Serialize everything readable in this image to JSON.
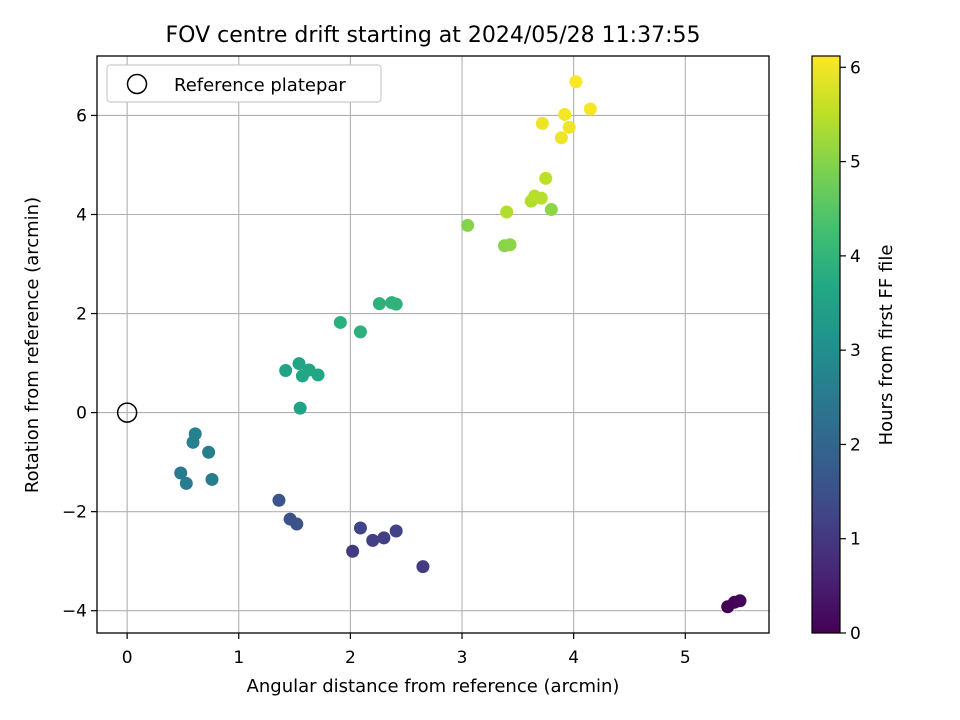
{
  "chart_data": {
    "type": "scatter",
    "title": "FOV centre drift starting at 2024/05/28 11:37:55",
    "xlabel": "Angular distance from reference (arcmin)",
    "ylabel": "Rotation from reference (arcmin)",
    "colorbar_label": "Hours from first FF file",
    "xlim": [
      -0.27,
      5.75
    ],
    "ylim": [
      -4.45,
      7.2
    ],
    "clim": [
      0,
      6.12
    ],
    "x_ticks": [
      0,
      1,
      2,
      3,
      4,
      5
    ],
    "y_ticks": [
      -4,
      -2,
      0,
      2,
      4,
      6
    ],
    "colorbar_ticks": [
      0,
      1,
      2,
      3,
      4,
      5,
      6
    ],
    "grid": true,
    "colormap": "viridis",
    "legend": {
      "placement": "upper-left",
      "entries": [
        {
          "label": "Reference platepar",
          "marker": "open-circle"
        }
      ]
    },
    "reference_point": {
      "x": 0,
      "y": 0
    },
    "points": [
      {
        "x": 5.38,
        "y": -3.92,
        "hours": 0.0
      },
      {
        "x": 5.44,
        "y": -3.83,
        "hours": 0.05
      },
      {
        "x": 5.49,
        "y": -3.8,
        "hours": 0.1
      },
      {
        "x": 2.02,
        "y": -2.8,
        "hours": 1.05
      },
      {
        "x": 2.65,
        "y": -3.11,
        "hours": 1.08
      },
      {
        "x": 2.2,
        "y": -2.58,
        "hours": 1.12
      },
      {
        "x": 2.3,
        "y": -2.53,
        "hours": 1.15
      },
      {
        "x": 2.41,
        "y": -2.39,
        "hours": 1.2
      },
      {
        "x": 2.09,
        "y": -2.33,
        "hours": 1.22
      },
      {
        "x": 1.52,
        "y": -2.25,
        "hours": 1.55
      },
      {
        "x": 1.46,
        "y": -2.15,
        "hours": 1.58
      },
      {
        "x": 1.36,
        "y": -1.77,
        "hours": 1.62
      },
      {
        "x": 0.48,
        "y": -1.22,
        "hours": 2.5
      },
      {
        "x": 0.53,
        "y": -1.43,
        "hours": 2.55
      },
      {
        "x": 0.76,
        "y": -1.35,
        "hours": 2.6
      },
      {
        "x": 0.73,
        "y": -0.8,
        "hours": 2.62
      },
      {
        "x": 0.59,
        "y": -0.6,
        "hours": 2.65
      },
      {
        "x": 0.61,
        "y": -0.43,
        "hours": 2.68
      },
      {
        "x": 1.55,
        "y": 0.09,
        "hours": 3.5
      },
      {
        "x": 1.42,
        "y": 0.85,
        "hours": 3.55
      },
      {
        "x": 1.54,
        "y": 0.99,
        "hours": 3.58
      },
      {
        "x": 1.63,
        "y": 0.86,
        "hours": 3.6
      },
      {
        "x": 1.57,
        "y": 0.74,
        "hours": 3.62
      },
      {
        "x": 1.71,
        "y": 0.76,
        "hours": 3.65
      },
      {
        "x": 1.91,
        "y": 1.82,
        "hours": 3.85
      },
      {
        "x": 2.09,
        "y": 1.63,
        "hours": 3.88
      },
      {
        "x": 2.26,
        "y": 2.2,
        "hours": 3.9
      },
      {
        "x": 2.37,
        "y": 2.22,
        "hours": 3.92
      },
      {
        "x": 2.41,
        "y": 2.19,
        "hours": 3.95
      },
      {
        "x": 3.05,
        "y": 3.78,
        "hours": 5.0
      },
      {
        "x": 3.38,
        "y": 3.37,
        "hours": 5.02
      },
      {
        "x": 3.43,
        "y": 3.39,
        "hours": 5.05
      },
      {
        "x": 3.8,
        "y": 4.1,
        "hours": 5.05
      },
      {
        "x": 3.4,
        "y": 4.05,
        "hours": 5.4
      },
      {
        "x": 3.62,
        "y": 4.27,
        "hours": 5.42
      },
      {
        "x": 3.65,
        "y": 4.37,
        "hours": 5.45
      },
      {
        "x": 3.71,
        "y": 4.33,
        "hours": 5.45
      },
      {
        "x": 3.75,
        "y": 4.73,
        "hours": 5.5
      },
      {
        "x": 3.72,
        "y": 5.84,
        "hours": 5.95
      },
      {
        "x": 3.89,
        "y": 5.55,
        "hours": 5.97
      },
      {
        "x": 3.96,
        "y": 5.76,
        "hours": 6.0
      },
      {
        "x": 3.92,
        "y": 6.02,
        "hours": 6.02
      },
      {
        "x": 4.15,
        "y": 6.13,
        "hours": 6.05
      },
      {
        "x": 4.02,
        "y": 6.68,
        "hours": 6.1
      }
    ]
  }
}
